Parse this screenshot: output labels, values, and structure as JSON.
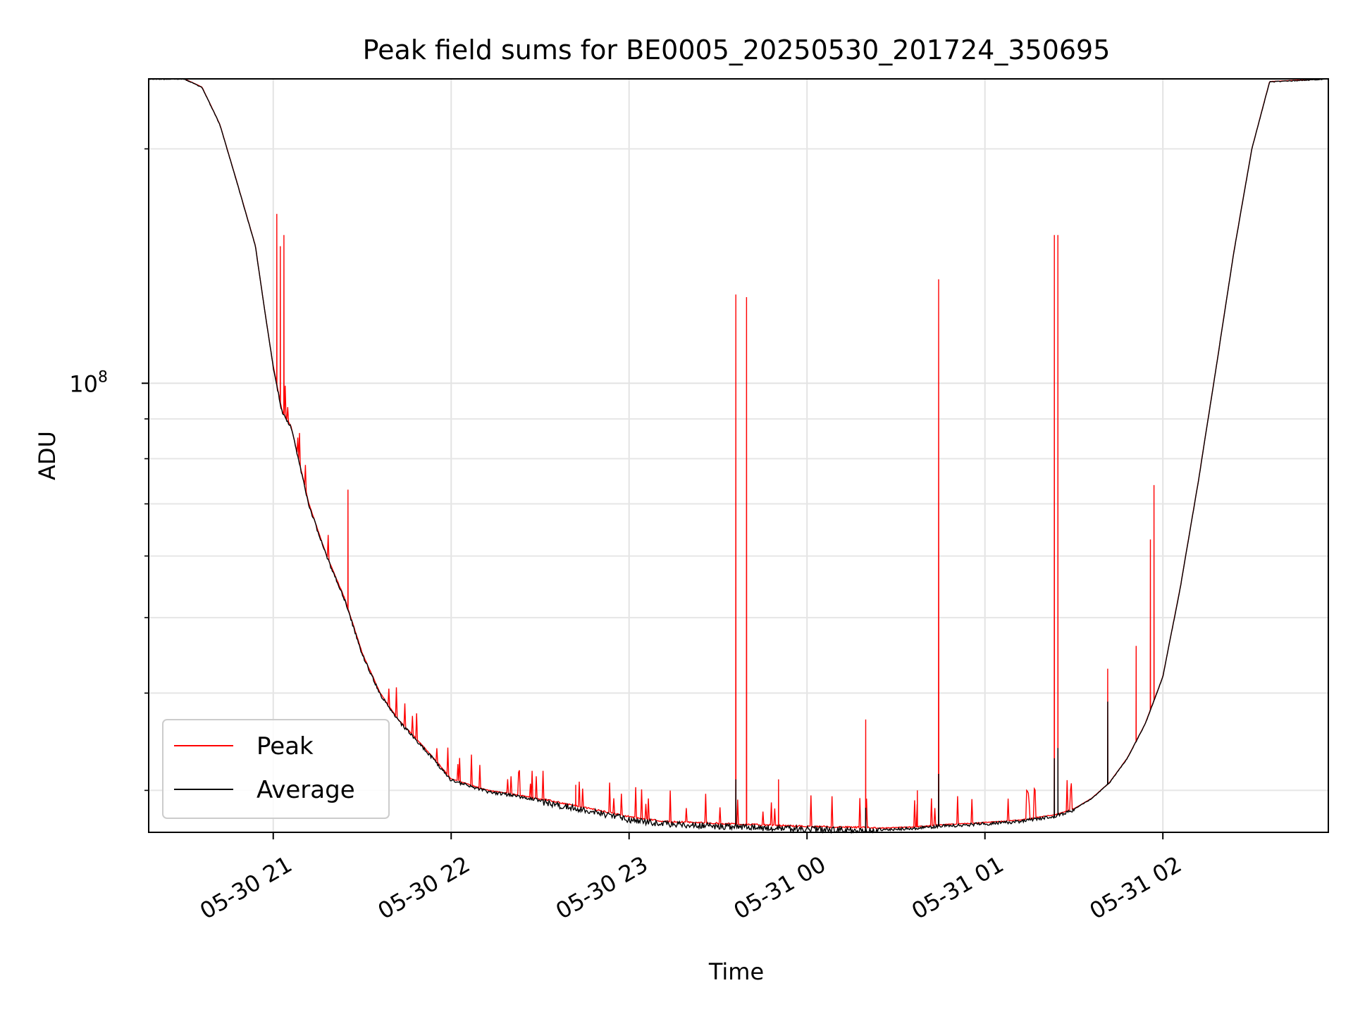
{
  "chart_data": {
    "type": "line",
    "title": "Peak field sums for BE0005_20250530_201724_350695",
    "xlabel": "Time",
    "ylabel": "ADU",
    "x_ticks": [
      "05-30 21",
      "05-30 22",
      "05-30 23",
      "05-31 00",
      "05-31 01",
      "05-31 02"
    ],
    "x_tick_hours": [
      21,
      22,
      23,
      24,
      25,
      26
    ],
    "xlim_hours": [
      20.3,
      26.93
    ],
    "y_scale": "log",
    "ylim": [
      26500000,
      246000000
    ],
    "y_major_ticks": [
      {
        "value": 100000000,
        "base": "10",
        "exponent": "8"
      }
    ],
    "y_minor_ticks": [
      30000000,
      40000000,
      50000000,
      60000000,
      70000000,
      80000000,
      90000000,
      200000000
    ],
    "grid": true,
    "legend": {
      "position": "lower-left",
      "entries": [
        "Peak",
        "Average"
      ]
    },
    "colors": {
      "peak": "#ff0000",
      "average": "#000000"
    },
    "baseline": {
      "x": [
        20.3,
        20.5,
        20.6,
        20.7,
        20.8,
        20.9,
        20.95,
        21.0,
        21.05,
        21.1,
        21.2,
        21.3,
        21.4,
        21.5,
        21.6,
        21.7,
        21.8,
        21.9,
        22.0,
        22.2,
        22.4,
        22.6,
        22.8,
        23.0,
        23.2,
        23.4,
        23.6,
        23.8,
        24.0,
        24.2,
        24.4,
        24.6,
        24.8,
        25.0,
        25.2,
        25.4,
        25.5,
        25.6,
        25.7,
        25.8,
        25.9,
        26.0,
        26.1,
        26.2,
        26.3,
        26.4,
        26.5,
        26.6,
        26.93
      ],
      "y": [
        246000000,
        246000000,
        240000000,
        215000000,
        180000000,
        150000000,
        125000000,
        105000000,
        92000000,
        88000000,
        70000000,
        60000000,
        53000000,
        45000000,
        40000000,
        37000000,
        35000000,
        33000000,
        31000000,
        30000000,
        29500000,
        28900000,
        28300000,
        27700000,
        27300000,
        27200000,
        27100000,
        27000000,
        26900000,
        26850000,
        26800000,
        26900000,
        27100000,
        27250000,
        27450000,
        27900000,
        28400000,
        29300000,
        30700000,
        33000000,
        36500000,
        42000000,
        55000000,
        75000000,
        105000000,
        148000000,
        200000000,
        244000000,
        246000000
      ]
    },
    "series": [
      {
        "name": "Peak",
        "spikes": [
          {
            "x": 21.02,
            "y": 165000000
          },
          {
            "x": 21.04,
            "y": 150000000
          },
          {
            "x": 21.06,
            "y": 155000000
          },
          {
            "x": 21.42,
            "y": 73000000
          },
          {
            "x": 22.7,
            "y": 30500000
          },
          {
            "x": 23.6,
            "y": 130000000
          },
          {
            "x": 23.66,
            "y": 129000000
          },
          {
            "x": 23.84,
            "y": 31000000
          },
          {
            "x": 24.33,
            "y": 37000000
          },
          {
            "x": 24.62,
            "y": 30000000
          },
          {
            "x": 24.74,
            "y": 136000000
          },
          {
            "x": 25.39,
            "y": 155000000
          },
          {
            "x": 25.41,
            "y": 155000000
          },
          {
            "x": 25.69,
            "y": 43000000
          },
          {
            "x": 25.85,
            "y": 46000000
          },
          {
            "x": 25.93,
            "y": 63000000
          },
          {
            "x": 25.95,
            "y": 74000000
          }
        ]
      },
      {
        "name": "Average",
        "spikes": [
          {
            "x": 23.6,
            "y": 31000000
          },
          {
            "x": 24.33,
            "y": 28500000
          },
          {
            "x": 24.74,
            "y": 31500000
          },
          {
            "x": 25.39,
            "y": 33000000
          },
          {
            "x": 25.41,
            "y": 34000000
          },
          {
            "x": 25.69,
            "y": 39000000
          }
        ]
      }
    ]
  }
}
